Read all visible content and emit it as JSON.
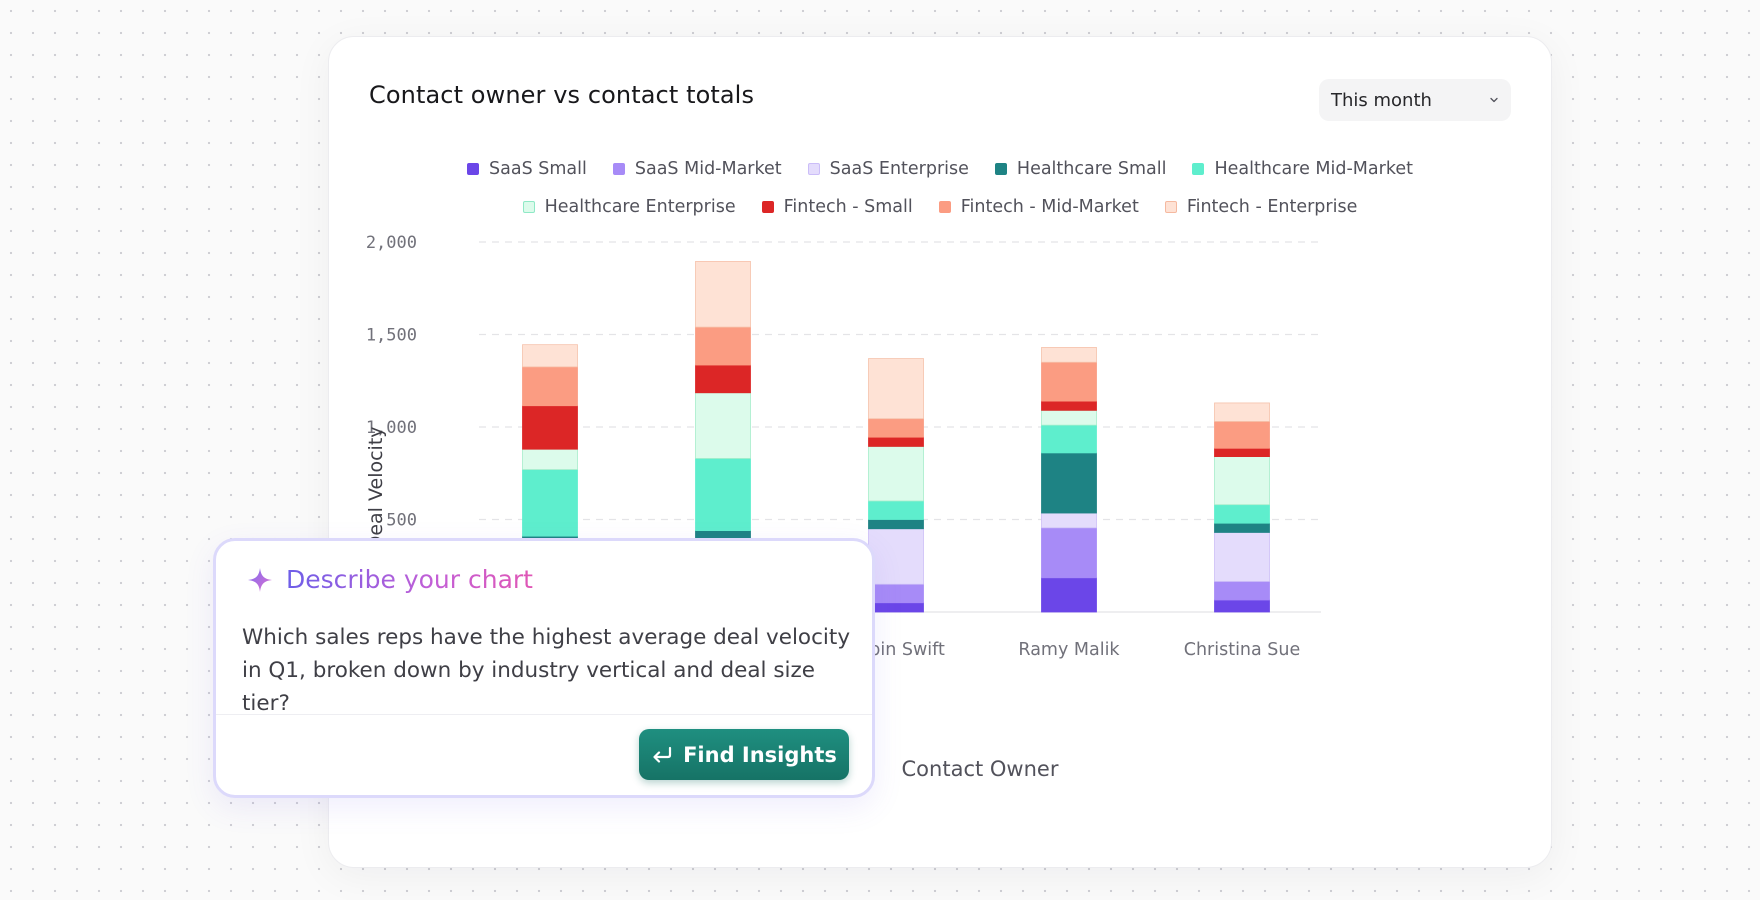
{
  "card": {
    "title": "Contact owner vs contact totals",
    "period_selector": {
      "value": "This month"
    }
  },
  "chart_data": {
    "type": "bar",
    "stacked": true,
    "title": "",
    "xlabel": "Contact Owner",
    "ylabel": "Avg Deal Velocity",
    "ylim": [
      0,
      2000
    ],
    "yticks": [
      "2,000",
      "1,500",
      "1,000",
      "500"
    ],
    "grid": true,
    "legend_position": "top",
    "categories": [
      "",
      "",
      "Robin Swift",
      "Ramy Malik",
      "Christina Sue"
    ],
    "series": [
      {
        "name": "SaaS Small",
        "color": "#6b46e8",
        "values": [
          60,
          80,
          50,
          185,
          65
        ]
      },
      {
        "name": "SaaS Mid-Market",
        "color": "#a78bf7",
        "values": [
          140,
          120,
          100,
          270,
          100
        ]
      },
      {
        "name": "SaaS Enterprise",
        "color": "#e4dcfc",
        "values": [
          150,
          180,
          300,
          80,
          265
        ]
      },
      {
        "name": "Healthcare Small",
        "color": "#1e8384",
        "values": [
          60,
          60,
          50,
          325,
          50
        ]
      },
      {
        "name": "Healthcare Mid-Market",
        "color": "#5eeecd",
        "values": [
          360,
          390,
          100,
          150,
          100
        ]
      },
      {
        "name": "Healthcare Enterprise",
        "color": "#dcfbeb",
        "values": [
          110,
          355,
          295,
          80,
          260
        ]
      },
      {
        "name": "Fintech - Small",
        "color": "#dc2626",
        "values": [
          235,
          150,
          50,
          50,
          45
        ]
      },
      {
        "name": "Fintech - Mid-Market",
        "color": "#fb9c82",
        "values": [
          210,
          205,
          100,
          210,
          145
        ]
      },
      {
        "name": "Fintech - Enterprise",
        "color": "#fee2d5",
        "values": [
          120,
          355,
          325,
          80,
          100
        ]
      }
    ]
  },
  "panel": {
    "title": "Describe your chart",
    "prompt": "Which sales reps have the highest average deal velocity in Q1, broken down by industry vertical and deal size tier?",
    "button_label": "Find Insights"
  }
}
